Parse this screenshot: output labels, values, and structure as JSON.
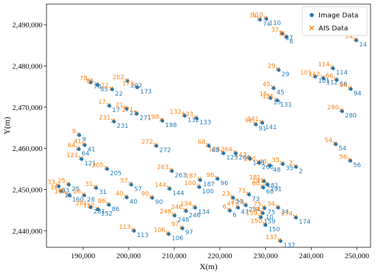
{
  "chart_data": {
    "type": "scatter",
    "title": "",
    "xlabel": "X(m)",
    "ylabel": "Y(m)",
    "xlim": [
      182000,
      253000
    ],
    "ylim": [
      2436000,
      2495000
    ],
    "xticks": [
      190000,
      200000,
      210000,
      220000,
      230000,
      240000,
      250000
    ],
    "xtick_labels": [
      "190,000",
      "200,000",
      "210,000",
      "220,000",
      "230,000",
      "240,000",
      "250,000"
    ],
    "yticks": [
      2440000,
      2450000,
      2460000,
      2470000,
      2480000,
      2490000
    ],
    "ytick_labels": [
      "2,440,000",
      "2,450,000",
      "2,460,000",
      "2,470,000",
      "2,480,000",
      "2,490,000"
    ],
    "grid": false,
    "legend_position": "top-right",
    "colors": {
      "image": "#1f77b4",
      "ais": "#ff7f0e"
    },
    "series": [
      {
        "name": "Image Data",
        "marker": "circle",
        "color": "#1f77b4"
      },
      {
        "name": "AIS Data",
        "marker": "x",
        "color": "#ff7f0e"
      }
    ],
    "points": [
      {
        "id": "110",
        "x": 230200,
        "y": 2491400
      },
      {
        "id": "74",
        "x": 228800,
        "y": 2491200
      },
      {
        "id": "37",
        "x": 233700,
        "y": 2487800
      },
      {
        "id": "8",
        "x": 234600,
        "y": 2487000
      },
      {
        "id": "14",
        "x": 249900,
        "y": 2486200
      },
      {
        "id": "114",
        "x": 244800,
        "y": 2479400
      },
      {
        "id": "29",
        "x": 232900,
        "y": 2479000
      },
      {
        "id": "101",
        "x": 240900,
        "y": 2477400
      },
      {
        "id": "112",
        "x": 242700,
        "y": 2477000
      },
      {
        "id": "66",
        "x": 245600,
        "y": 2476600
      },
      {
        "id": "94",
        "x": 248700,
        "y": 2474400
      },
      {
        "id": "45",
        "x": 231800,
        "y": 2474600
      },
      {
        "id": "15",
        "x": 231100,
        "y": 2472200
      },
      {
        "id": "131",
        "x": 232600,
        "y": 2471600
      },
      {
        "id": "280",
        "x": 246800,
        "y": 2469000
      },
      {
        "id": "141",
        "x": 229300,
        "y": 2466200
      },
      {
        "id": "91",
        "x": 227900,
        "y": 2465800
      },
      {
        "id": "54",
        "x": 245400,
        "y": 2461000
      },
      {
        "id": "56",
        "x": 248600,
        "y": 2457000
      },
      {
        "id": "2",
        "x": 236700,
        "y": 2455500
      },
      {
        "id": "35",
        "x": 233800,
        "y": 2456200
      },
      {
        "id": "48",
        "x": 231000,
        "y": 2455800
      },
      {
        "id": "260",
        "x": 228600,
        "y": 2456500
      },
      {
        "id": "143",
        "x": 226600,
        "y": 2457500
      },
      {
        "id": "264",
        "x": 223500,
        "y": 2458800
      },
      {
        "id": "125",
        "x": 220800,
        "y": 2458800
      },
      {
        "id": "68",
        "x": 217600,
        "y": 2460600
      },
      {
        "id": "181",
        "x": 229700,
        "y": 2452000
      },
      {
        "id": "191",
        "x": 230400,
        "y": 2451200
      },
      {
        "id": "60",
        "x": 229500,
        "y": 2450500
      },
      {
        "id": "73",
        "x": 226400,
        "y": 2448800
      },
      {
        "id": "23",
        "x": 222900,
        "y": 2448000
      },
      {
        "id": "254",
        "x": 225700,
        "y": 2446200
      },
      {
        "id": "47",
        "x": 224000,
        "y": 2445600
      },
      {
        "id": "6",
        "x": 222200,
        "y": 2444900
      },
      {
        "id": "34",
        "x": 232800,
        "y": 2445600
      },
      {
        "id": "10",
        "x": 229400,
        "y": 2444300
      },
      {
        "id": "75",
        "x": 229800,
        "y": 2445500
      },
      {
        "id": "159",
        "x": 229000,
        "y": 2443300
      },
      {
        "id": "150",
        "x": 230000,
        "y": 2441400
      },
      {
        "id": "174",
        "x": 236700,
        "y": 2443200
      },
      {
        "id": "137",
        "x": 233300,
        "y": 2437500
      },
      {
        "id": "96",
        "x": 219500,
        "y": 2452600
      },
      {
        "id": "100",
        "x": 215500,
        "y": 2450600
      },
      {
        "id": "187",
        "x": 215700,
        "y": 2452300
      },
      {
        "id": "134",
        "x": 214600,
        "y": 2445600
      },
      {
        "id": "246",
        "x": 212600,
        "y": 2444800
      },
      {
        "id": "97",
        "x": 211800,
        "y": 2440600
      },
      {
        "id": "106",
        "x": 208800,
        "y": 2439200
      },
      {
        "id": "248",
        "x": 210100,
        "y": 2443700
      },
      {
        "id": "113",
        "x": 201200,
        "y": 2440000
      },
      {
        "id": "78",
        "x": 191700,
        "y": 2476000
      },
      {
        "id": "85",
        "x": 193200,
        "y": 2475400
      },
      {
        "id": "202",
        "x": 199800,
        "y": 2476300
      },
      {
        "id": "173",
        "x": 201900,
        "y": 2474800
      },
      {
        "id": "22",
        "x": 196400,
        "y": 2474300
      },
      {
        "id": "17",
        "x": 195800,
        "y": 2470300
      },
      {
        "id": "21",
        "x": 199600,
        "y": 2469600
      },
      {
        "id": "271",
        "x": 201800,
        "y": 2468400
      },
      {
        "id": "133",
        "x": 214900,
        "y": 2467300
      },
      {
        "id": "132",
        "x": 212300,
        "y": 2467900
      },
      {
        "id": "198",
        "x": 207400,
        "y": 2466700
      },
      {
        "id": "231",
        "x": 196800,
        "y": 2466500
      },
      {
        "id": "9",
        "x": 189200,
        "y": 2463200
      },
      {
        "id": "41",
        "x": 190400,
        "y": 2460800
      },
      {
        "id": "64",
        "x": 189100,
        "y": 2459800
      },
      {
        "id": "121",
        "x": 189700,
        "y": 2457400
      },
      {
        "id": "272",
        "x": 206100,
        "y": 2460600
      },
      {
        "id": "205",
        "x": 195300,
        "y": 2455000
      },
      {
        "id": "263",
        "x": 209500,
        "y": 2454500
      },
      {
        "id": "33",
        "x": 184700,
        "y": 2450800
      },
      {
        "id": "25",
        "x": 186900,
        "y": 2451200
      },
      {
        "id": "16",
        "x": 185300,
        "y": 2449600
      },
      {
        "id": "160",
        "x": 187000,
        "y": 2448600
      },
      {
        "id": "28",
        "x": 190300,
        "y": 2448600
      },
      {
        "id": "31",
        "x": 192900,
        "y": 2450400
      },
      {
        "id": "86",
        "x": 195700,
        "y": 2446300
      },
      {
        "id": "152",
        "x": 193300,
        "y": 2445200
      },
      {
        "id": "281",
        "x": 191700,
        "y": 2445700
      },
      {
        "id": "40",
        "x": 199600,
        "y": 2448100
      },
      {
        "id": "57",
        "x": 200600,
        "y": 2451200
      },
      {
        "id": "90",
        "x": 205200,
        "y": 2448000
      },
      {
        "id": "144",
        "x": 209000,
        "y": 2450200
      }
    ]
  },
  "legend": {
    "items": [
      {
        "label": "Image Data",
        "marker": "circle",
        "color": "#1f77b4"
      },
      {
        "label": "AIS Data",
        "marker": "x",
        "color": "#ff7f0e"
      }
    ]
  }
}
